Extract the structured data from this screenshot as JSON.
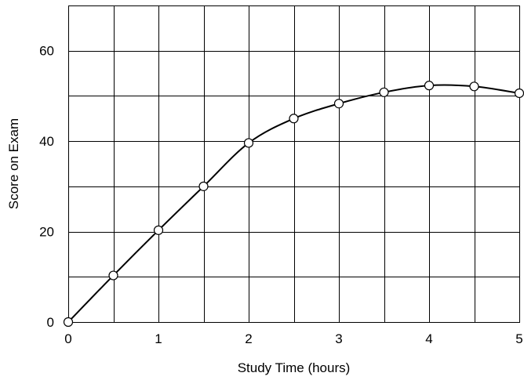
{
  "chart_data": {
    "type": "line",
    "title": "",
    "xlabel": "Study Time (hours)",
    "ylabel": "Score on Exam",
    "xlim": [
      0,
      5
    ],
    "ylim": [
      0,
      70
    ],
    "xticks": [
      "0",
      "1",
      "2",
      "3",
      "4",
      "5"
    ],
    "yticks": [
      "0",
      "20",
      "40",
      "60"
    ],
    "grid": true,
    "grid_x_step": 0.5,
    "grid_y_step": 10,
    "series": [
      {
        "x": [
          0,
          0.5,
          1,
          1.5,
          2,
          2.5,
          3,
          3.5,
          4,
          4.5,
          5
        ],
        "y": [
          0,
          10.3,
          20.3,
          30,
          39.6,
          45,
          48.3,
          50.8,
          52.3,
          52.1,
          50.6
        ]
      }
    ],
    "colors": {
      "line": "#000000",
      "marker_fill": "#ffffff"
    }
  }
}
